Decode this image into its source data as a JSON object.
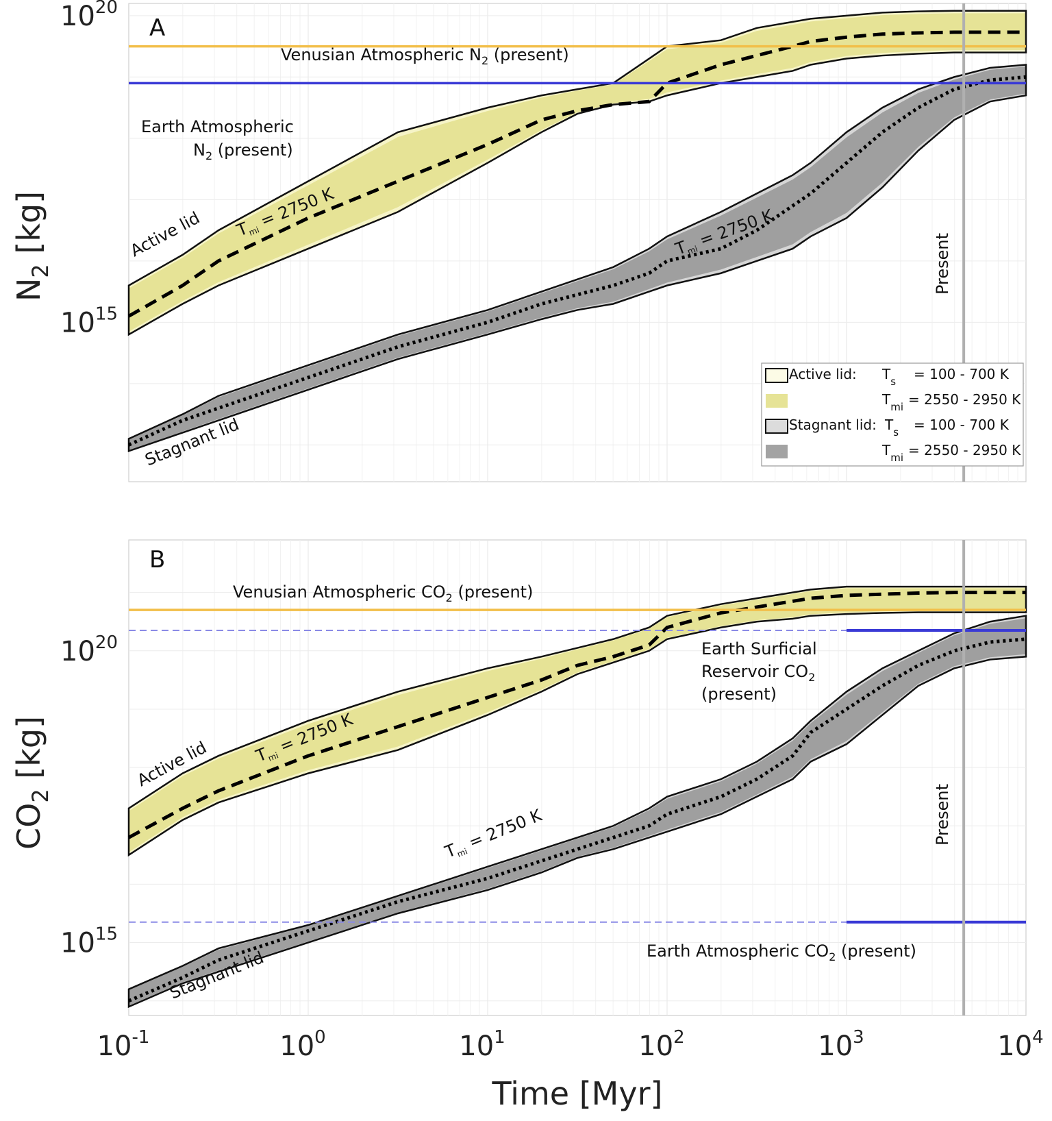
{
  "chart_data": [
    {
      "type": "area",
      "panel_label": "A",
      "ylabel": "N",
      "ylabel_sub": "2",
      "ylabel_unit": " [kg]",
      "xscale": "log",
      "yscale": "log",
      "xlim": [
        0.1,
        10000
      ],
      "ylim_log10": [
        12.4,
        20.2
      ],
      "x_ticks": [
        0.1,
        1,
        10,
        100,
        1000,
        10000
      ],
      "x_tick_exponents": [
        "-1",
        "0",
        "1",
        "2",
        "3",
        "4"
      ],
      "y_ticks_log10": [
        15,
        20
      ],
      "y_tick_exponents": [
        "15",
        "20"
      ],
      "tick_base": "10",
      "grid": true,
      "x_log10": [
        -1,
        -0.7,
        -0.5,
        0,
        0.5,
        1,
        1.3,
        1.5,
        1.7,
        1.9,
        2.0,
        2.3,
        2.5,
        2.7,
        2.8,
        3.0,
        3.2,
        3.4,
        3.6,
        3.8,
        4.0
      ],
      "series": [
        {
          "name": "Active lid upper",
          "values_log10": [
            15.6,
            16.1,
            16.5,
            17.3,
            18.1,
            18.5,
            18.7,
            18.8,
            18.9,
            19.3,
            19.5,
            19.6,
            19.8,
            19.9,
            19.95,
            20.0,
            20.05,
            20.07,
            20.08,
            20.08,
            20.08
          ]
        },
        {
          "name": "Active lid lower",
          "values_log10": [
            14.8,
            15.3,
            15.6,
            16.2,
            16.8,
            17.6,
            18.1,
            18.4,
            18.55,
            18.6,
            18.7,
            18.9,
            19.0,
            19.1,
            19.2,
            19.3,
            19.35,
            19.38,
            19.4,
            19.4,
            19.4
          ]
        },
        {
          "name": "Active lid T_mi = 2750 K",
          "values_log10": [
            15.1,
            15.6,
            16.0,
            16.7,
            17.3,
            17.9,
            18.3,
            18.45,
            18.55,
            18.6,
            18.9,
            19.2,
            19.35,
            19.5,
            19.58,
            19.65,
            19.7,
            19.72,
            19.73,
            19.73,
            19.73
          ]
        },
        {
          "name": "Stagnant lid upper",
          "values_log10": [
            13.1,
            13.5,
            13.8,
            14.3,
            14.8,
            15.2,
            15.5,
            15.7,
            15.9,
            16.2,
            16.4,
            16.8,
            17.1,
            17.4,
            17.6,
            18.1,
            18.5,
            18.8,
            19.0,
            19.15,
            19.2
          ]
        },
        {
          "name": "Stagnant lid lower",
          "values_log10": [
            12.9,
            13.2,
            13.4,
            13.9,
            14.4,
            14.8,
            15.05,
            15.2,
            15.3,
            15.5,
            15.6,
            15.8,
            16.0,
            16.2,
            16.4,
            16.7,
            17.2,
            17.8,
            18.3,
            18.6,
            18.7
          ]
        },
        {
          "name": "Stagnant lid T_mi = 2750 K",
          "values_log10": [
            13.0,
            13.4,
            13.6,
            14.1,
            14.6,
            15.0,
            15.3,
            15.45,
            15.6,
            15.8,
            16.0,
            16.2,
            16.5,
            16.9,
            17.1,
            17.6,
            18.1,
            18.5,
            18.8,
            18.95,
            19.0
          ]
        }
      ],
      "reference_lines": [
        {
          "name": "Venusian Atmospheric N2 (present)",
          "value_log10": 19.5,
          "color": "#f2bf4a"
        },
        {
          "name": "Earth Atmospheric N2 (present)",
          "value_log10": 18.9,
          "color": "#3a3ad6"
        }
      ],
      "present_marker_myr": 4500,
      "annotations": {
        "venus": "Venusian Atmospheric N",
        "venus_sub": "2",
        "venus_tail": " (present)",
        "earth_line1": "Earth Atmospheric",
        "earth_line2": "N",
        "earth_sub": "2",
        "earth_tail": " (present)",
        "active_lid": "Active lid",
        "stagnant_lid": "Stagnant lid",
        "tmi_T": "T",
        "tmi_sub": "mi",
        "tmi_tail": " = 2750 K",
        "present": "Present"
      },
      "legend": {
        "placement": "bottom-right",
        "entries": [
          {
            "label": "Active lid:",
            "param": "T",
            "param_sub": "s",
            "range": "= 100 - 700 K",
            "swatch": "#fcfbe6"
          },
          {
            "label": "",
            "param": "T",
            "param_sub": "mi",
            "range": "= 2550 - 2950 K",
            "swatch": "#e6e396"
          },
          {
            "label": "Stagnant lid:",
            "param": "T",
            "param_sub": "s",
            "range": "= 100 - 700 K",
            "swatch": "#dcdcdc"
          },
          {
            "label": "",
            "param": "T",
            "param_sub": "mi",
            "range": "= 2550 - 2950 K",
            "swatch": "#a3a3a3"
          }
        ]
      }
    },
    {
      "type": "area",
      "panel_label": "B",
      "ylabel": "CO",
      "ylabel_sub": "2",
      "ylabel_unit": " [kg]",
      "xlabel": "Time [Myr]",
      "xscale": "log",
      "yscale": "log",
      "xlim": [
        0.1,
        10000
      ],
      "ylim_log10": [
        13.75,
        21.9
      ],
      "x_ticks": [
        0.1,
        1,
        10,
        100,
        1000,
        10000
      ],
      "x_tick_exponents": [
        "-1",
        "0",
        "1",
        "2",
        "3",
        "4"
      ],
      "y_ticks_log10": [
        15,
        20
      ],
      "y_tick_exponents": [
        "15",
        "20"
      ],
      "tick_base": "10",
      "grid": true,
      "x_log10": [
        -1,
        -0.7,
        -0.5,
        0,
        0.5,
        1,
        1.3,
        1.5,
        1.7,
        1.9,
        2.0,
        2.3,
        2.5,
        2.7,
        2.8,
        3.0,
        3.2,
        3.4,
        3.6,
        3.8,
        4.0
      ],
      "series": [
        {
          "name": "Active lid upper",
          "values_log10": [
            17.3,
            17.9,
            18.2,
            18.8,
            19.3,
            19.7,
            19.9,
            20.05,
            20.2,
            20.4,
            20.6,
            20.8,
            20.9,
            21.0,
            21.05,
            21.1,
            21.1,
            21.1,
            21.1,
            21.1,
            21.1
          ]
        },
        {
          "name": "Active lid lower",
          "values_log10": [
            16.5,
            17.1,
            17.4,
            17.9,
            18.3,
            18.9,
            19.3,
            19.6,
            19.8,
            20.0,
            20.2,
            20.4,
            20.5,
            20.55,
            20.6,
            20.63,
            20.65,
            20.66,
            20.66,
            20.66,
            20.66
          ]
        },
        {
          "name": "Active lid T_mi = 2750 K",
          "values_log10": [
            16.8,
            17.3,
            17.6,
            18.2,
            18.7,
            19.2,
            19.5,
            19.75,
            19.9,
            20.1,
            20.4,
            20.65,
            20.75,
            20.85,
            20.9,
            20.95,
            20.97,
            20.99,
            21.0,
            21.0,
            21.0
          ]
        },
        {
          "name": "Stagnant lid upper",
          "values_log10": [
            14.2,
            14.6,
            14.9,
            15.3,
            15.8,
            16.3,
            16.6,
            16.8,
            17.0,
            17.3,
            17.5,
            17.8,
            18.1,
            18.5,
            18.8,
            19.3,
            19.7,
            20.0,
            20.3,
            20.5,
            20.6
          ]
        },
        {
          "name": "Stagnant lid lower",
          "values_log10": [
            13.9,
            14.3,
            14.5,
            15.0,
            15.5,
            15.9,
            16.2,
            16.45,
            16.6,
            16.8,
            16.9,
            17.2,
            17.5,
            17.8,
            18.1,
            18.4,
            18.9,
            19.4,
            19.7,
            19.85,
            19.9
          ]
        },
        {
          "name": "Stagnant lid T_mi = 2750 K",
          "values_log10": [
            14.0,
            14.4,
            14.7,
            15.2,
            15.7,
            16.1,
            16.4,
            16.6,
            16.8,
            17.0,
            17.2,
            17.5,
            17.8,
            18.2,
            18.6,
            19.0,
            19.4,
            19.75,
            20.0,
            20.15,
            20.2
          ]
        }
      ],
      "reference_lines": [
        {
          "name": "Venusian Atmospheric CO2 (present)",
          "value_log10": 20.7,
          "color": "#f2bf4a"
        },
        {
          "name": "Earth Surficial Reservoir CO2 (present)",
          "value_log10": 20.35,
          "color": "#3a3ad6"
        },
        {
          "name": "Earth Atmospheric CO2 (present)",
          "value_log10": 15.35,
          "color": "#3a3ad6"
        }
      ],
      "present_marker_myr": 4500,
      "annotations": {
        "venus": "Venusian Atmospheric CO",
        "venus_sub": "2",
        "venus_tail": " (present)",
        "surf_line1": "Earth Surficial",
        "surf_line2": "Reservoir CO",
        "surf_sub": "2",
        "surf_line3": "(present)",
        "earthatm": "Earth Atmospheric CO",
        "earthatm_sub": "2",
        "earthatm_tail": " (present)",
        "active_lid": "Active lid",
        "stagnant_lid": "Stagnant lid",
        "tmi_T": "T",
        "tmi_sub": "mi",
        "tmi_tail": " = 2750 K",
        "present": "Present"
      }
    }
  ],
  "colors": {
    "active_outer": "#f6f4c8",
    "active_inner": "#e6e396",
    "stagnant_outer": "#d6d6d6",
    "stagnant_inner": "#9f9f9f",
    "venus_line": "#f2bf4a",
    "earth_line": "#3a3ad6",
    "present_line": "#b0b0b0"
  }
}
